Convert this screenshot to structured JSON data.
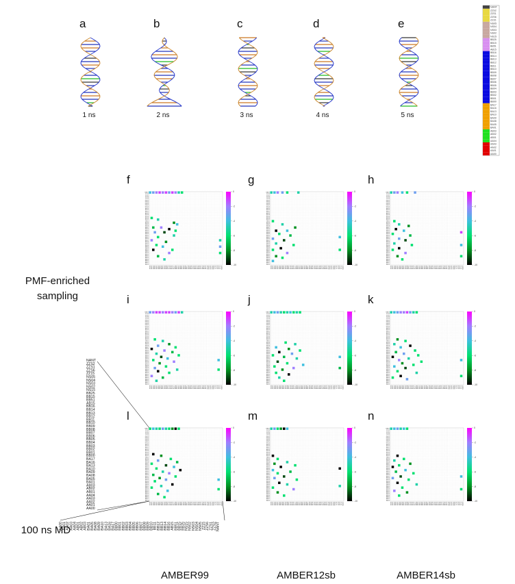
{
  "panels_top": [
    {
      "letter": "a",
      "time": "1 ns"
    },
    {
      "letter": "b",
      "time": "2 ns"
    },
    {
      "letter": "c",
      "time": "3 ns"
    },
    {
      "letter": "d",
      "time": "4 ns"
    },
    {
      "letter": "e",
      "time": "5 ns"
    }
  ],
  "residues": [
    "NANT",
    "ZZS2",
    "ZZS1",
    "ZZS6",
    "ZZ15",
    "NS05",
    "NS04",
    "NS03",
    "NS02",
    "NS15",
    "BB25",
    "BB15",
    "BB51",
    "AB15",
    "BB16",
    "BB14",
    "BB13",
    "BB12",
    "BB11",
    "BB10",
    "BB09",
    "BB08",
    "BB07",
    "BB06",
    "BB05",
    "BB04",
    "BB03",
    "BB02",
    "BB01",
    "BB00",
    "BA17",
    "BA16",
    "BA13",
    "BA10",
    "BA09",
    "BA08",
    "BA05",
    "BA01",
    "AB03",
    "AB02",
    "AB01",
    "AA04",
    "AA03",
    "AA02",
    "AA01",
    "AA00"
  ],
  "residue_colors": [
    "#444",
    "#e8d840",
    "#e8d840",
    "#e8d840",
    "#e8d840",
    "#c8a8a0",
    "#c8a8a0",
    "#c8a8a0",
    "#c8a8a0",
    "#c8a8a0",
    "#d890f0",
    "#d890f0",
    "#d890f0",
    "#d890f0",
    "#0a0ae0",
    "#0a0ae0",
    "#0a0ae0",
    "#0a0ae0",
    "#0a0ae0",
    "#0a0ae0",
    "#0a0ae0",
    "#0a0ae0",
    "#0a0ae0",
    "#0a0ae0",
    "#0a0ae0",
    "#0a0ae0",
    "#0a0ae0",
    "#0a0ae0",
    "#0a0ae0",
    "#0a0ae0",
    "#f0a000",
    "#f0a000",
    "#f0a000",
    "#f0a000",
    "#f0a000",
    "#f0a000",
    "#f0a000",
    "#f0a000",
    "#20e020",
    "#20e020",
    "#20e020",
    "#20e020",
    "#e00000",
    "#e00000",
    "#e00000",
    "#e00000"
  ],
  "row_labels": [
    "PMF-enriched sampling",
    "100 ns MD"
  ],
  "column_labels": [
    "AMBER99",
    "AMBER12sb",
    "AMBER14sb"
  ],
  "colorbar": {
    "lim": [
      -10,
      0
    ],
    "ticks": [
      0,
      -2,
      -4,
      -6,
      -8,
      -10
    ],
    "colors": [
      "#ff00ff",
      "#9f7fff",
      "#3fbfdf",
      "#00e070",
      "#009020",
      "#000000"
    ]
  },
  "heatmaps": [
    {
      "letter": "f",
      "cells": [
        [
          0,
          45,
          -4
        ],
        [
          0,
          43,
          -3
        ],
        [
          0,
          41,
          -2
        ],
        [
          0,
          39,
          -1
        ],
        [
          0,
          37,
          -2
        ],
        [
          0,
          35,
          -1
        ],
        [
          0,
          33,
          -3
        ],
        [
          0,
          31,
          -1
        ],
        [
          0,
          29,
          -2
        ],
        [
          0,
          27,
          -5
        ],
        [
          0,
          25,
          -6
        ],
        [
          16,
          44,
          -6
        ],
        [
          17,
          40,
          -5
        ],
        [
          19,
          30,
          -8
        ],
        [
          20,
          28,
          -4
        ],
        [
          22,
          43,
          -7
        ],
        [
          22,
          38,
          -2
        ],
        [
          23,
          33,
          -10
        ],
        [
          24,
          29,
          -6
        ],
        [
          25,
          42,
          -3
        ],
        [
          25,
          36,
          -9
        ],
        [
          27,
          30,
          -5
        ],
        [
          28,
          40,
          -6
        ],
        [
          30,
          44,
          -2
        ],
        [
          31,
          35,
          -8
        ],
        [
          33,
          41,
          -6
        ],
        [
          34,
          37,
          -4
        ],
        [
          36,
          43,
          -10
        ],
        [
          36,
          31,
          -6
        ],
        [
          38,
          33,
          -2
        ],
        [
          40,
          40,
          -7
        ],
        [
          42,
          36,
          -5
        ],
        [
          30,
          1,
          -5
        ],
        [
          34,
          1,
          -3
        ],
        [
          38,
          1,
          -6
        ]
      ]
    },
    {
      "letter": "g",
      "cells": [
        [
          0,
          45,
          -5
        ],
        [
          0,
          43,
          -4
        ],
        [
          0,
          41,
          -2
        ],
        [
          0,
          38,
          -3
        ],
        [
          0,
          35,
          -6
        ],
        [
          0,
          28,
          -5
        ],
        [
          18,
          44,
          -6
        ],
        [
          20,
          38,
          -5
        ],
        [
          22,
          30,
          -8
        ],
        [
          24,
          42,
          -10
        ],
        [
          24,
          35,
          -4
        ],
        [
          26,
          40,
          -6
        ],
        [
          27,
          33,
          -7
        ],
        [
          29,
          44,
          -3
        ],
        [
          30,
          37,
          -9
        ],
        [
          32,
          42,
          -5
        ],
        [
          33,
          31,
          -6
        ],
        [
          35,
          39,
          -10
        ],
        [
          36,
          44,
          -6
        ],
        [
          38,
          35,
          -2
        ],
        [
          40,
          42,
          -8
        ],
        [
          41,
          38,
          -6
        ],
        [
          43,
          44,
          -4
        ],
        [
          28,
          2,
          -4
        ],
        [
          36,
          2,
          -6
        ]
      ]
    },
    {
      "letter": "h",
      "cells": [
        [
          0,
          45,
          -5
        ],
        [
          0,
          43,
          -3
        ],
        [
          0,
          41,
          -2
        ],
        [
          0,
          38,
          -4
        ],
        [
          0,
          35,
          -6
        ],
        [
          0,
          30,
          -3
        ],
        [
          18,
          43,
          -6
        ],
        [
          20,
          40,
          -5
        ],
        [
          21,
          34,
          -8
        ],
        [
          23,
          42,
          -10
        ],
        [
          24,
          37,
          -4
        ],
        [
          26,
          44,
          -6
        ],
        [
          27,
          33,
          -7
        ],
        [
          29,
          40,
          -3
        ],
        [
          30,
          36,
          -9
        ],
        [
          32,
          43,
          -5
        ],
        [
          33,
          32,
          -6
        ],
        [
          35,
          40,
          -10
        ],
        [
          36,
          44,
          -6
        ],
        [
          38,
          36,
          -2
        ],
        [
          40,
          41,
          -8
        ],
        [
          42,
          38,
          -6
        ],
        [
          25,
          1,
          -1
        ],
        [
          33,
          1,
          -4
        ],
        [
          40,
          1,
          -6
        ]
      ]
    },
    {
      "letter": "i",
      "cells": [
        [
          0,
          45,
          -3
        ],
        [
          0,
          43,
          -2
        ],
        [
          0,
          41,
          -1
        ],
        [
          0,
          39,
          -1
        ],
        [
          0,
          37,
          -2
        ],
        [
          0,
          35,
          -1
        ],
        [
          0,
          33,
          -1
        ],
        [
          0,
          31,
          -2
        ],
        [
          0,
          29,
          -3
        ],
        [
          0,
          27,
          -1
        ],
        [
          0,
          25,
          -5
        ],
        [
          17,
          42,
          -6
        ],
        [
          18,
          37,
          -5
        ],
        [
          20,
          33,
          -8
        ],
        [
          21,
          40,
          -3
        ],
        [
          22,
          29,
          -6
        ],
        [
          23,
          44,
          -10
        ],
        [
          24,
          36,
          -2
        ],
        [
          25,
          31,
          -7
        ],
        [
          26,
          41,
          -5
        ],
        [
          27,
          27,
          -6
        ],
        [
          28,
          38,
          -9
        ],
        [
          29,
          34,
          -4
        ],
        [
          30,
          43,
          -6
        ],
        [
          31,
          30,
          -2
        ],
        [
          32,
          39,
          -8
        ],
        [
          34,
          35,
          -6
        ],
        [
          35,
          42,
          -3
        ],
        [
          36,
          28,
          -5
        ],
        [
          37,
          40,
          -10
        ],
        [
          38,
          33,
          -6
        ],
        [
          40,
          44,
          -2
        ],
        [
          41,
          37,
          -7
        ],
        [
          43,
          41,
          -5
        ],
        [
          30,
          2,
          -4
        ],
        [
          36,
          2,
          -6
        ]
      ]
    },
    {
      "letter": "j",
      "cells": [
        [
          0,
          45,
          -5
        ],
        [
          0,
          43,
          -4
        ],
        [
          0,
          41,
          -3
        ],
        [
          0,
          39,
          -5
        ],
        [
          0,
          37,
          -6
        ],
        [
          0,
          35,
          -5
        ],
        [
          0,
          33,
          -4
        ],
        [
          0,
          31,
          -6
        ],
        [
          0,
          29,
          -5
        ],
        [
          0,
          27,
          -6
        ],
        [
          19,
          36,
          -6
        ],
        [
          20,
          30,
          -5
        ],
        [
          22,
          42,
          -4
        ],
        [
          23,
          34,
          -8
        ],
        [
          24,
          27,
          -6
        ],
        [
          25,
          40,
          -10
        ],
        [
          26,
          32,
          -3
        ],
        [
          27,
          44,
          -6
        ],
        [
          28,
          37,
          -7
        ],
        [
          29,
          29,
          -5
        ],
        [
          31,
          41,
          -9
        ],
        [
          32,
          35,
          -6
        ],
        [
          33,
          25,
          -4
        ],
        [
          34,
          43,
          -6
        ],
        [
          35,
          31,
          -2
        ],
        [
          36,
          38,
          -8
        ],
        [
          38,
          42,
          -6
        ],
        [
          39,
          34,
          -10
        ],
        [
          41,
          40,
          -5
        ],
        [
          43,
          37,
          -6
        ],
        [
          28,
          2,
          -4
        ],
        [
          35,
          2,
          -7
        ]
      ]
    },
    {
      "letter": "k",
      "cells": [
        [
          0,
          45,
          -5
        ],
        [
          0,
          43,
          -4
        ],
        [
          0,
          41,
          -3
        ],
        [
          0,
          39,
          -2
        ],
        [
          0,
          37,
          -2
        ],
        [
          0,
          35,
          -1
        ],
        [
          0,
          33,
          -3
        ],
        [
          0,
          31,
          -5
        ],
        [
          0,
          29,
          -6
        ],
        [
          17,
          41,
          -8
        ],
        [
          18,
          36,
          -6
        ],
        [
          20,
          43,
          -5
        ],
        [
          21,
          33,
          -10
        ],
        [
          22,
          39,
          -4
        ],
        [
          24,
          30,
          -6
        ],
        [
          25,
          42,
          -7
        ],
        [
          26,
          37,
          -3
        ],
        [
          27,
          28,
          -6
        ],
        [
          28,
          44,
          -10
        ],
        [
          29,
          34,
          -5
        ],
        [
          30,
          40,
          -2
        ],
        [
          31,
          26,
          -6
        ],
        [
          32,
          38,
          -8
        ],
        [
          33,
          31,
          -6
        ],
        [
          34,
          43,
          -4
        ],
        [
          35,
          36,
          -9
        ],
        [
          37,
          41,
          -6
        ],
        [
          38,
          29,
          -5
        ],
        [
          40,
          39,
          -10
        ],
        [
          41,
          44,
          -6
        ],
        [
          42,
          35,
          -3
        ],
        [
          30,
          1,
          -4
        ],
        [
          40,
          1,
          -6
        ]
      ]
    },
    {
      "letter": "l",
      "cells": [
        [
          0,
          45,
          -6
        ],
        [
          0,
          43,
          -4
        ],
        [
          0,
          41,
          -5
        ],
        [
          0,
          39,
          -6
        ],
        [
          0,
          37,
          -3
        ],
        [
          0,
          35,
          -5
        ],
        [
          0,
          33,
          -6
        ],
        [
          0,
          31,
          -8
        ],
        [
          0,
          29,
          -10
        ],
        [
          0,
          27,
          -6
        ],
        [
          16,
          43,
          -10
        ],
        [
          17,
          38,
          -8
        ],
        [
          19,
          32,
          -6
        ],
        [
          20,
          40,
          -3
        ],
        [
          21,
          28,
          -7
        ],
        [
          22,
          44,
          -6
        ],
        [
          23,
          35,
          -9
        ],
        [
          24,
          30,
          -4
        ],
        [
          25,
          41,
          -6
        ],
        [
          26,
          26,
          -10
        ],
        [
          27,
          37,
          -5
        ],
        [
          28,
          33,
          -2
        ],
        [
          29,
          43,
          -7
        ],
        [
          30,
          29,
          -6
        ],
        [
          31,
          39,
          -8
        ],
        [
          32,
          35,
          -3
        ],
        [
          33,
          42,
          -6
        ],
        [
          35,
          31,
          -10
        ],
        [
          36,
          38,
          -5
        ],
        [
          37,
          44,
          -6
        ],
        [
          39,
          34,
          -4
        ],
        [
          41,
          40,
          -7
        ],
        [
          43,
          36,
          -6
        ],
        [
          32,
          2,
          -4
        ],
        [
          38,
          2,
          -6
        ]
      ]
    },
    {
      "letter": "m",
      "cells": [
        [
          0,
          45,
          -5
        ],
        [
          0,
          43,
          -3
        ],
        [
          0,
          41,
          -6
        ],
        [
          0,
          39,
          -8
        ],
        [
          0,
          37,
          -10
        ],
        [
          0,
          35,
          -4
        ],
        [
          17,
          44,
          -10
        ],
        [
          19,
          41,
          -6
        ],
        [
          21,
          35,
          -5
        ],
        [
          22,
          43,
          -8
        ],
        [
          23,
          30,
          -6
        ],
        [
          24,
          39,
          -10
        ],
        [
          26,
          44,
          -4
        ],
        [
          27,
          33,
          -7
        ],
        [
          28,
          41,
          -6
        ],
        [
          30,
          37,
          -9
        ],
        [
          31,
          43,
          -3
        ],
        [
          32,
          29,
          -6
        ],
        [
          34,
          40,
          -10
        ],
        [
          35,
          35,
          -5
        ],
        [
          37,
          44,
          -6
        ],
        [
          38,
          31,
          -2
        ],
        [
          40,
          41,
          -8
        ],
        [
          42,
          37,
          -6
        ],
        [
          25,
          2,
          -10
        ],
        [
          36,
          2,
          -5
        ]
      ]
    },
    {
      "letter": "n",
      "cells": [
        [
          0,
          45,
          -5
        ],
        [
          0,
          43,
          -4
        ],
        [
          0,
          41,
          -3
        ],
        [
          0,
          39,
          -5
        ],
        [
          0,
          37,
          -4
        ],
        [
          0,
          35,
          -6
        ],
        [
          17,
          41,
          -10
        ],
        [
          19,
          37,
          -6
        ],
        [
          20,
          43,
          -5
        ],
        [
          22,
          33,
          -8
        ],
        [
          23,
          40,
          -6
        ],
        [
          24,
          44,
          -10
        ],
        [
          26,
          36,
          -4
        ],
        [
          27,
          42,
          -7
        ],
        [
          28,
          31,
          -6
        ],
        [
          30,
          39,
          -9
        ],
        [
          31,
          44,
          -3
        ],
        [
          32,
          34,
          -6
        ],
        [
          34,
          41,
          -10
        ],
        [
          35,
          29,
          -5
        ],
        [
          37,
          38,
          -6
        ],
        [
          39,
          43,
          -2
        ],
        [
          40,
          35,
          -8
        ],
        [
          42,
          40,
          -6
        ],
        [
          30,
          1,
          -4
        ],
        [
          38,
          1,
          -6
        ]
      ]
    }
  ]
}
